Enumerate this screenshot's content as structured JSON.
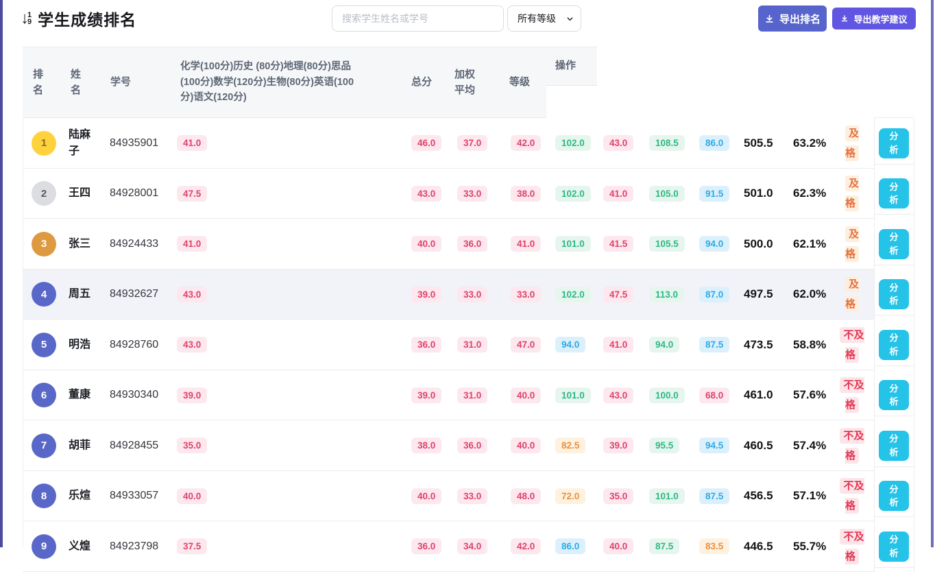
{
  "page": {
    "title": "学生成绩排名",
    "sort_icon": {
      "arrow": "↓",
      "top_digit": "1",
      "bottom_digit": "9"
    },
    "search": {
      "placeholder": "搜索学生姓名或学号"
    },
    "grade_filter": {
      "selected": "所有等级"
    },
    "buttons": {
      "export_rank": "导出排名",
      "export_advice": "导出教学建议"
    }
  },
  "icons": [
    "sort-numeric-down-icon",
    "chevron-down-icon",
    "download-icon"
  ],
  "colors": {
    "primary_button": "#5664cc",
    "secondary_button": "#6156e2",
    "analyze_button": "#25c3e8",
    "pill_red_text": "#e0416b",
    "pill_green_text": "#2eb887",
    "pill_blue_text": "#2aabe8",
    "pill_orange_text": "#ef8f3d",
    "grade_pass_text": "#e5703c",
    "grade_fail_text": "#e23753",
    "rank1_badge": "#fdd23c",
    "rank2_badge": "#dcdde0",
    "rank3_badge": "#dd9a40",
    "rank_other_badge": "#5968c8",
    "header_bg": "#f6f7f9",
    "highlight_row_bg": "#f2f3f9",
    "edge_bar_left": "#4c4c9d",
    "edge_bar_right": "#6f6fb5"
  },
  "table": {
    "headers": {
      "rank": "排名",
      "name": "姓名",
      "student_id": "学号",
      "subjects": "化学(100分)历史 (80分)地理(80分)思品(100分)数学(120分)生物(80分)英语(100分)语文(120分)",
      "total": "总分",
      "weighted_avg": "加权平均",
      "grade": "等级",
      "action": "操作"
    },
    "action_button_label": "分析",
    "rows": [
      {
        "rank": "1",
        "rank_style": "gold",
        "name": "陆麻子",
        "student_id": "84935901",
        "highlighted": false,
        "scores": [
          {
            "v": "41.0",
            "c": "red"
          },
          {
            "v": "46.0",
            "c": "red"
          },
          {
            "v": "37.0",
            "c": "red"
          },
          {
            "v": "42.0",
            "c": "red"
          },
          {
            "v": "102.0",
            "c": "green"
          },
          {
            "v": "43.0",
            "c": "red"
          },
          {
            "v": "108.5",
            "c": "green"
          },
          {
            "v": "86.0",
            "c": "blue"
          }
        ],
        "total": "505.5",
        "percent": "63.2%",
        "grade": "及格",
        "grade_style": "pass"
      },
      {
        "rank": "2",
        "rank_style": "silver",
        "name": "王四",
        "student_id": "84928001",
        "highlighted": false,
        "scores": [
          {
            "v": "47.5",
            "c": "red"
          },
          {
            "v": "43.0",
            "c": "red"
          },
          {
            "v": "33.0",
            "c": "red"
          },
          {
            "v": "38.0",
            "c": "red"
          },
          {
            "v": "102.0",
            "c": "green"
          },
          {
            "v": "41.0",
            "c": "red"
          },
          {
            "v": "105.0",
            "c": "green"
          },
          {
            "v": "91.5",
            "c": "blue"
          }
        ],
        "total": "501.0",
        "percent": "62.3%",
        "grade": "及格",
        "grade_style": "pass"
      },
      {
        "rank": "3",
        "rank_style": "bronze",
        "name": "张三",
        "student_id": "84924433",
        "highlighted": false,
        "scores": [
          {
            "v": "41.0",
            "c": "red"
          },
          {
            "v": "40.0",
            "c": "red"
          },
          {
            "v": "36.0",
            "c": "red"
          },
          {
            "v": "41.0",
            "c": "red"
          },
          {
            "v": "101.0",
            "c": "green"
          },
          {
            "v": "41.5",
            "c": "red"
          },
          {
            "v": "105.5",
            "c": "green"
          },
          {
            "v": "94.0",
            "c": "blue"
          }
        ],
        "total": "500.0",
        "percent": "62.1%",
        "grade": "及格",
        "grade_style": "pass"
      },
      {
        "rank": "4",
        "rank_style": "blue",
        "name": "周五",
        "student_id": "84932627",
        "highlighted": true,
        "scores": [
          {
            "v": "43.0",
            "c": "red"
          },
          {
            "v": "39.0",
            "c": "red"
          },
          {
            "v": "33.0",
            "c": "red"
          },
          {
            "v": "33.0",
            "c": "red"
          },
          {
            "v": "102.0",
            "c": "green"
          },
          {
            "v": "47.5",
            "c": "red"
          },
          {
            "v": "113.0",
            "c": "green"
          },
          {
            "v": "87.0",
            "c": "blue"
          }
        ],
        "total": "497.5",
        "percent": "62.0%",
        "grade": "及格",
        "grade_style": "pass"
      },
      {
        "rank": "5",
        "rank_style": "blue",
        "name": "明浩",
        "student_id": "84928760",
        "highlighted": false,
        "scores": [
          {
            "v": "43.0",
            "c": "red"
          },
          {
            "v": "36.0",
            "c": "red"
          },
          {
            "v": "31.0",
            "c": "red"
          },
          {
            "v": "47.0",
            "c": "red"
          },
          {
            "v": "94.0",
            "c": "blue"
          },
          {
            "v": "41.0",
            "c": "red"
          },
          {
            "v": "94.0",
            "c": "green"
          },
          {
            "v": "87.5",
            "c": "blue"
          }
        ],
        "total": "473.5",
        "percent": "58.8%",
        "grade": "不及格",
        "grade_style": "fail"
      },
      {
        "rank": "6",
        "rank_style": "blue",
        "name": "董康",
        "student_id": "84930340",
        "highlighted": false,
        "scores": [
          {
            "v": "39.0",
            "c": "red"
          },
          {
            "v": "39.0",
            "c": "red"
          },
          {
            "v": "31.0",
            "c": "red"
          },
          {
            "v": "40.0",
            "c": "red"
          },
          {
            "v": "101.0",
            "c": "green"
          },
          {
            "v": "43.0",
            "c": "red"
          },
          {
            "v": "100.0",
            "c": "green"
          },
          {
            "v": "68.0",
            "c": "red"
          }
        ],
        "total": "461.0",
        "percent": "57.6%",
        "grade": "不及格",
        "grade_style": "fail"
      },
      {
        "rank": "7",
        "rank_style": "blue",
        "name": "胡菲",
        "student_id": "84928455",
        "highlighted": false,
        "scores": [
          {
            "v": "35.0",
            "c": "red"
          },
          {
            "v": "38.0",
            "c": "red"
          },
          {
            "v": "36.0",
            "c": "red"
          },
          {
            "v": "40.0",
            "c": "red"
          },
          {
            "v": "82.5",
            "c": "orange"
          },
          {
            "v": "39.0",
            "c": "red"
          },
          {
            "v": "95.5",
            "c": "green"
          },
          {
            "v": "94.5",
            "c": "blue"
          }
        ],
        "total": "460.5",
        "percent": "57.4%",
        "grade": "不及格",
        "grade_style": "fail"
      },
      {
        "rank": "8",
        "rank_style": "blue",
        "name": "乐煊",
        "student_id": "84933057",
        "highlighted": false,
        "scores": [
          {
            "v": "40.0",
            "c": "red"
          },
          {
            "v": "40.0",
            "c": "red"
          },
          {
            "v": "33.0",
            "c": "red"
          },
          {
            "v": "48.0",
            "c": "red"
          },
          {
            "v": "72.0",
            "c": "orange"
          },
          {
            "v": "35.0",
            "c": "red"
          },
          {
            "v": "101.0",
            "c": "green"
          },
          {
            "v": "87.5",
            "c": "blue"
          }
        ],
        "total": "456.5",
        "percent": "57.1%",
        "grade": "不及格",
        "grade_style": "fail"
      },
      {
        "rank": "9",
        "rank_style": "blue",
        "name": "义煌",
        "student_id": "84923798",
        "highlighted": false,
        "scores": [
          {
            "v": "37.5",
            "c": "red"
          },
          {
            "v": "36.0",
            "c": "red"
          },
          {
            "v": "34.0",
            "c": "red"
          },
          {
            "v": "42.0",
            "c": "red"
          },
          {
            "v": "86.0",
            "c": "blue"
          },
          {
            "v": "40.0",
            "c": "red"
          },
          {
            "v": "87.5",
            "c": "green"
          },
          {
            "v": "83.5",
            "c": "orange"
          }
        ],
        "total": "446.5",
        "percent": "55.7%",
        "grade": "不及格",
        "grade_style": "fail"
      }
    ]
  }
}
